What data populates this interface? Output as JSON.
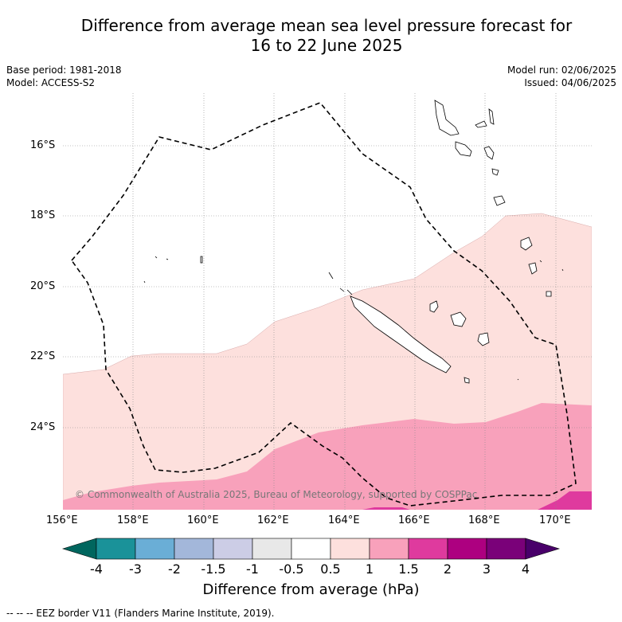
{
  "header": {
    "title_line1": "Difference from average mean sea level pressure forecast for",
    "title_line2": "16 to 22 June 2025",
    "base_period": "Base period: 1981-2018",
    "model": "Model: ACCESS-S2",
    "model_run": "Model run: 02/06/2025",
    "issued": "Issued: 04/06/2025"
  },
  "map": {
    "lat_labels": [
      "16°S",
      "18°S",
      "20°S",
      "22°S",
      "24°S"
    ],
    "lon_labels": [
      "156°E",
      "158°E",
      "160°E",
      "162°E",
      "164°E",
      "166°E",
      "168°E",
      "170°E"
    ],
    "copyright": "© Commonwealth of Australia 2025, Bureau of Meteorology, supported by COSPPac"
  },
  "colorbar": {
    "title": "Difference from average (hPa)",
    "tick_labels": [
      "-4",
      "-3",
      "-2",
      "-1.5",
      "-1",
      "-0.5",
      "0.5",
      "1",
      "1.5",
      "2",
      "3",
      "4"
    ],
    "colors": {
      "below_min": "#00665e",
      "-4_-3": "#1a9299",
      "-3_-2": "#6aaed6",
      "-2_-1.5": "#a3b7da",
      "-1.5_-1": "#cccde6",
      "-1_-0.5": "#e8e8e8",
      "-0.5_0.5": "#ffffff",
      "0.5_1": "#fde0dd",
      "1_1.5": "#f8a1bb",
      "1.5_2": "#df3a9e",
      "2_3": "#ad0080",
      "3_4": "#7a0179",
      "above_max": "#49006a"
    }
  },
  "footnote": "--  --  -- EEZ border V11 (Flanders Marine Institute, 2019)."
}
